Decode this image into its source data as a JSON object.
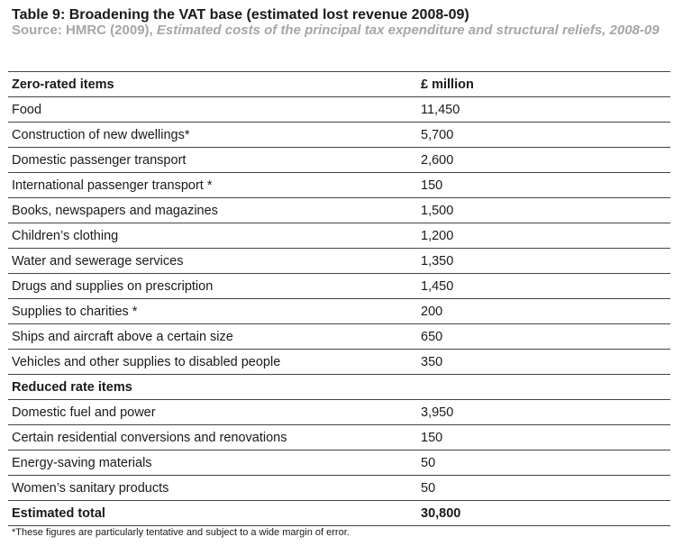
{
  "table": {
    "title": "Table 9: Broadening the VAT base (estimated lost revenue 2008-09)",
    "source_prefix": "Source: HMRC (2009),",
    "source_publication": "Estimated costs of the principal tax expenditure and structural reliefs, 2008-09",
    "headers": {
      "item": "Zero-rated items",
      "value": "£ million"
    },
    "zero_rated": [
      {
        "item": "Food",
        "value": "11,450"
      },
      {
        "item": "Construction of new dwellings*",
        "value": "5,700"
      },
      {
        "item": "Domestic passenger transport",
        "value": "2,600"
      },
      {
        "item": "International passenger transport *",
        "value": "150"
      },
      {
        "item": "Books, newspapers and magazines",
        "value": "1,500"
      },
      {
        "item": "Children’s clothing",
        "value": "1,200"
      },
      {
        "item": "Water and sewerage services",
        "value": "1,350"
      },
      {
        "item": "Drugs and supplies on prescription",
        "value": "1,450"
      },
      {
        "item": "Supplies to charities *",
        "value": "200"
      },
      {
        "item": "Ships and aircraft above a certain size",
        "value": "650"
      },
      {
        "item": "Vehicles and other supplies to disabled people",
        "value": "350"
      }
    ],
    "reduced_rate_heading": "Reduced rate items",
    "reduced_rate": [
      {
        "item": "Domestic fuel and power",
        "value": "3,950"
      },
      {
        "item": "Certain residential conversions and renovations",
        "value": "150"
      },
      {
        "item": "Energy-saving materials",
        "value": "50"
      },
      {
        "item": "Women’s sanitary products",
        "value": "50"
      }
    ],
    "total": {
      "label": "Estimated total",
      "value": "30,800"
    },
    "footnote": "*These figures are particularly tentative and subject to a wide margin of error."
  }
}
